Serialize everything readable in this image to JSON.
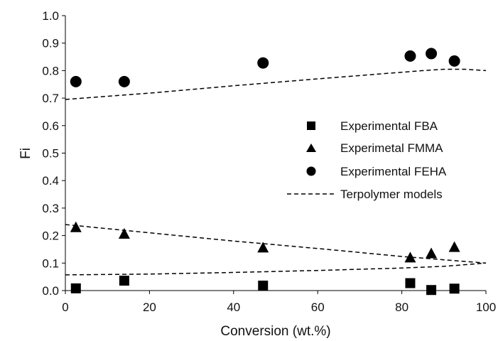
{
  "chart_data": {
    "type": "scatter",
    "title": "",
    "xlabel": "Conversion (wt.%)",
    "ylabel": "Fi",
    "xlim": [
      0,
      100
    ],
    "ylim": [
      0,
      1
    ],
    "x_ticks": [
      "0",
      "20",
      "40",
      "60",
      "80",
      "100"
    ],
    "y_ticks": [
      "0.0",
      "0.1",
      "0.2",
      "0.3",
      "0.4",
      "0.5",
      "0.6",
      "0.7",
      "0.8",
      "0.9",
      "1.0"
    ],
    "grid": false,
    "legend_position": "right-middle",
    "series": [
      {
        "name": "Experimental FBA",
        "marker": "square",
        "color": "#000000",
        "points": [
          {
            "x": 2.5,
            "y": 0.008
          },
          {
            "x": 14,
            "y": 0.036
          },
          {
            "x": 47,
            "y": 0.018
          },
          {
            "x": 82,
            "y": 0.027
          },
          {
            "x": 87,
            "y": 0.002
          },
          {
            "x": 92.5,
            "y": 0.007
          }
        ]
      },
      {
        "name": "Experimetal FMMA",
        "marker": "triangle",
        "color": "#000000",
        "points": [
          {
            "x": 2.5,
            "y": 0.228
          },
          {
            "x": 14,
            "y": 0.204
          },
          {
            "x": 47,
            "y": 0.154
          },
          {
            "x": 82,
            "y": 0.118
          },
          {
            "x": 87,
            "y": 0.133
          },
          {
            "x": 92.5,
            "y": 0.156
          }
        ]
      },
      {
        "name": "Experimental FEHA",
        "marker": "circle",
        "color": "#000000",
        "points": [
          {
            "x": 2.5,
            "y": 0.76
          },
          {
            "x": 14,
            "y": 0.76
          },
          {
            "x": 47,
            "y": 0.828
          },
          {
            "x": 82,
            "y": 0.853
          },
          {
            "x": 87,
            "y": 0.862
          },
          {
            "x": 92.5,
            "y": 0.835
          }
        ]
      },
      {
        "name": "Terpolymer models",
        "marker": "dashed-line",
        "color": "#000000",
        "lines": [
          [
            {
              "x": 0,
              "y": 0.695
            },
            {
              "x": 20,
              "y": 0.718
            },
            {
              "x": 40,
              "y": 0.745
            },
            {
              "x": 60,
              "y": 0.77
            },
            {
              "x": 75,
              "y": 0.788
            },
            {
              "x": 85,
              "y": 0.8
            },
            {
              "x": 90,
              "y": 0.805
            },
            {
              "x": 95,
              "y": 0.805
            },
            {
              "x": 100,
              "y": 0.8
            }
          ],
          [
            {
              "x": 0,
              "y": 0.24
            },
            {
              "x": 20,
              "y": 0.21
            },
            {
              "x": 40,
              "y": 0.18
            },
            {
              "x": 60,
              "y": 0.153
            },
            {
              "x": 80,
              "y": 0.124
            },
            {
              "x": 90,
              "y": 0.112
            },
            {
              "x": 100,
              "y": 0.1
            }
          ],
          [
            {
              "x": 0,
              "y": 0.057
            },
            {
              "x": 20,
              "y": 0.06
            },
            {
              "x": 40,
              "y": 0.066
            },
            {
              "x": 60,
              "y": 0.073
            },
            {
              "x": 80,
              "y": 0.082
            },
            {
              "x": 90,
              "y": 0.088
            },
            {
              "x": 100,
              "y": 0.1
            }
          ]
        ]
      }
    ]
  }
}
